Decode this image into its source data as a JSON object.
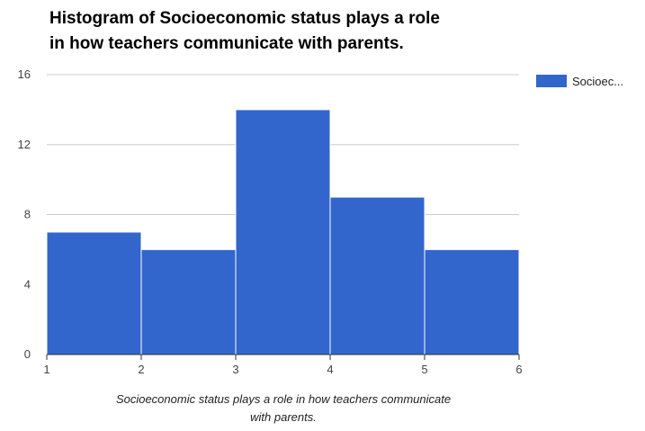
{
  "chart_data": {
    "type": "bar",
    "subtype": "histogram",
    "title_lines": [
      "Histogram of Socioeconomic status plays a role",
      "in how teachers communicate with parents."
    ],
    "xlabel_lines": [
      "Socioeconomic status plays a role in how teachers communicate",
      "with parents."
    ],
    "ylabel": "",
    "bins": [
      {
        "from": 1,
        "to": 2,
        "count": 7
      },
      {
        "from": 2,
        "to": 3,
        "count": 6
      },
      {
        "from": 3,
        "to": 4,
        "count": 14
      },
      {
        "from": 4,
        "to": 5,
        "count": 9
      },
      {
        "from": 5,
        "to": 6,
        "count": 6
      }
    ],
    "xlim": [
      1,
      6
    ],
    "ylim": [
      0,
      16
    ],
    "x_ticks": [
      "1",
      "2",
      "3",
      "4",
      "5",
      "6"
    ],
    "y_ticks": [
      "0",
      "4",
      "8",
      "12",
      "16"
    ],
    "grid": true,
    "legend": {
      "position": "right",
      "entries": [
        {
          "label": "Socioec...",
          "color": "#3366cc"
        }
      ]
    },
    "colors": {
      "bar": "#3366cc",
      "grid": "#cccccc",
      "axis": "#333333"
    }
  }
}
